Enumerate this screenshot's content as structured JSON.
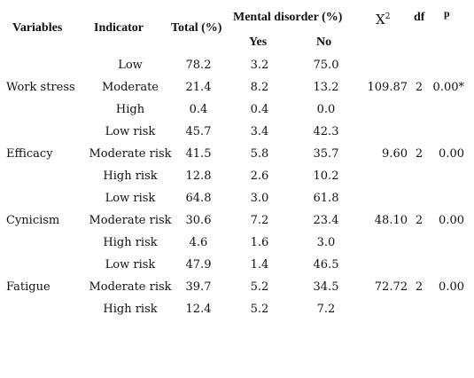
{
  "headers": {
    "variables": "Variables",
    "indicator": "Indicator",
    "total": "Total (%)",
    "mental_disorder": "Mental disorder (%)",
    "yes": "Yes",
    "no": "No",
    "x2_base": "X",
    "x2_sup": "2",
    "df": "df",
    "p": "p"
  },
  "groups": [
    {
      "variable": "Work stress",
      "x2": "109.87",
      "df": "2",
      "p": "0.00*",
      "rows": [
        {
          "indicator": "Low",
          "total": "78.2",
          "yes": "3.2",
          "no": "75.0"
        },
        {
          "indicator": "Moderate",
          "total": "21.4",
          "yes": "8.2",
          "no": "13.2"
        },
        {
          "indicator": "High",
          "total": "0.4",
          "yes": "0.4",
          "no": "0.0"
        }
      ]
    },
    {
      "variable": "Efficacy",
      "x2": "9.60",
      "df": "2",
      "p": "0.00",
      "rows": [
        {
          "indicator": "Low risk",
          "total": "45.7",
          "yes": "3.4",
          "no": "42.3"
        },
        {
          "indicator": "Moderate risk",
          "total": "41.5",
          "yes": "5.8",
          "no": "35.7"
        },
        {
          "indicator": "High risk",
          "total": "12.8",
          "yes": "2.6",
          "no": "10.2"
        }
      ]
    },
    {
      "variable": "Cynicism",
      "x2": "48.10",
      "df": "2",
      "p": "0.00",
      "rows": [
        {
          "indicator": "Low risk",
          "total": "64.8",
          "yes": "3.0",
          "no": "61.8"
        },
        {
          "indicator": "Moderate risk",
          "total": "30.6",
          "yes": "7.2",
          "no": "23.4"
        },
        {
          "indicator": "High risk",
          "total": "4.6",
          "yes": "1.6",
          "no": "3.0"
        }
      ]
    },
    {
      "variable": "Fatigue",
      "x2": "72.72",
      "df": "2",
      "p": "0.00",
      "rows": [
        {
          "indicator": "Low risk",
          "total": "47.9",
          "yes": "1.4",
          "no": "46.5"
        },
        {
          "indicator": "Moderate risk",
          "total": "39.7",
          "yes": "5.2",
          "no": "34.5"
        },
        {
          "indicator": "High risk",
          "total": "12.4",
          "yes": "5.2",
          "no": "7.2"
        }
      ]
    }
  ]
}
